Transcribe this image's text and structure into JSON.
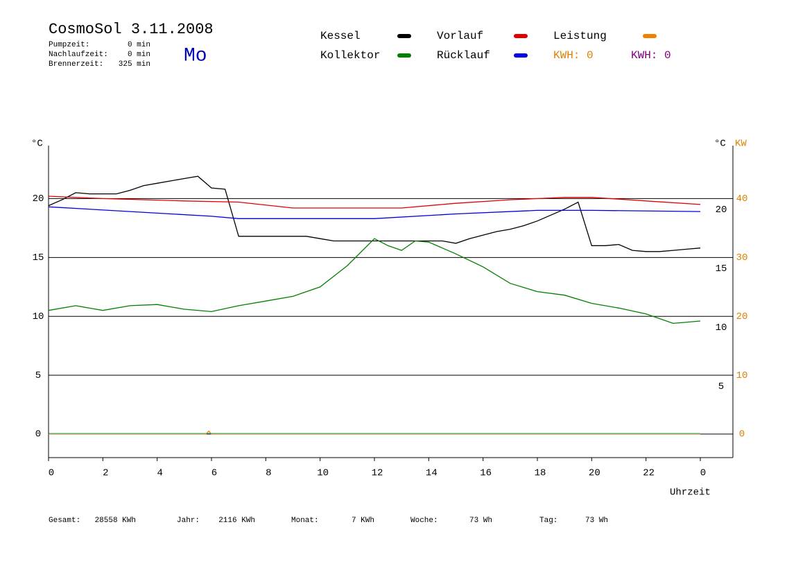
{
  "header": {
    "title": "CosmoSol 3.11.2008",
    "day": "Mo",
    "stats": [
      {
        "label": "Pumpzeit:",
        "value": "0 min"
      },
      {
        "label": "Nachlaufzeit:",
        "value": "0 min"
      },
      {
        "label": "Brennerzeit:",
        "value": "325 min"
      }
    ],
    "kwh": [
      {
        "label": "KWH: 0",
        "color": "#e08000"
      },
      {
        "label": "KWH: 0",
        "color": "#800080"
      }
    ]
  },
  "chart_data": {
    "type": "line",
    "xlabel": "Uhrzeit",
    "y_unit": "°C",
    "y_unit_right": "°C",
    "y2_unit": "KW",
    "grid": true,
    "xlim": [
      0,
      25.2
    ],
    "xticks": [
      0,
      2,
      4,
      6,
      8,
      10,
      12,
      14,
      16,
      18,
      20,
      22,
      {
        "value": 24,
        "label": "0"
      }
    ],
    "ylim": [
      -2,
      24.5
    ],
    "yticks": [
      0,
      5,
      10,
      15,
      20
    ],
    "yticks_right": [
      5,
      10,
      15,
      20
    ],
    "y2lim": [
      -4,
      49
    ],
    "y2ticks": [
      0,
      10,
      20,
      30,
      40
    ],
    "series": [
      {
        "name": "Kessel",
        "color": "#000000",
        "x": [
          0,
          0.5,
          1,
          1.5,
          2,
          2.5,
          3,
          3.5,
          4,
          4.5,
          5,
          5.5,
          6,
          6.5,
          7,
          7.5,
          8,
          8.5,
          9,
          9.5,
          10,
          10.5,
          11,
          11.5,
          12,
          12.5,
          13,
          13.5,
          14,
          14.5,
          15,
          15.5,
          16,
          16.5,
          17,
          17.5,
          18,
          18.5,
          19,
          19.5,
          20,
          20.5,
          21,
          21.5,
          22,
          22.5,
          23,
          23.5,
          24
        ],
        "values": [
          19.4,
          19.9,
          20.5,
          20.4,
          20.4,
          20.4,
          20.7,
          21.1,
          21.3,
          21.5,
          21.7,
          21.9,
          20.9,
          20.8,
          16.8,
          16.8,
          16.8,
          16.8,
          16.8,
          16.8,
          16.6,
          16.4,
          16.4,
          16.4,
          16.4,
          16.4,
          16.4,
          16.4,
          16.4,
          16.4,
          16.2,
          16.6,
          16.9,
          17.2,
          17.4,
          17.7,
          18.1,
          18.6,
          19.1,
          19.7,
          16,
          16,
          16.1,
          15.6,
          15.5,
          15.5,
          15.6,
          15.7,
          15.8
        ]
      },
      {
        "name": "Kollektor",
        "color": "#008000",
        "x": [
          0,
          1,
          2,
          3,
          4,
          5,
          6,
          7,
          8,
          9,
          10,
          11,
          12,
          12.5,
          13,
          13.5,
          14,
          15,
          16,
          17,
          18,
          19,
          20,
          21,
          22,
          23,
          24
        ],
        "values": [
          10.5,
          10.9,
          10.5,
          10.9,
          11,
          10.6,
          10.4,
          10.9,
          11.3,
          11.7,
          12.5,
          14.3,
          16.6,
          16.0,
          15.6,
          16.4,
          16.3,
          15.3,
          14.2,
          12.8,
          12.1,
          11.8,
          11.1,
          10.7,
          10.2,
          9.4,
          9.6
        ]
      },
      {
        "name": "Vorlauf",
        "color": "#e00000",
        "x": [
          0,
          2,
          5,
          7,
          9,
          13,
          15,
          17,
          19,
          20,
          22,
          24
        ],
        "values": [
          20.2,
          20,
          19.8,
          19.7,
          19.2,
          19.2,
          19.6,
          19.9,
          20.1,
          20.1,
          19.8,
          19.5
        ]
      },
      {
        "name": "Rücklauf",
        "color": "#0000e0",
        "x": [
          0,
          3,
          6,
          7,
          12,
          15,
          18,
          20,
          24
        ],
        "values": [
          19.3,
          18.9,
          18.5,
          18.3,
          18.3,
          18.7,
          19,
          19,
          18.9
        ]
      },
      {
        "name": "Leistung",
        "color": "#f08000",
        "axis": "y2",
        "x": [
          0,
          5.8,
          5.9,
          6,
          24
        ],
        "values": [
          0,
          0,
          0.5,
          0,
          0
        ]
      }
    ]
  },
  "footer": [
    {
      "label": "Gesamt:",
      "value": "28558 KWh"
    },
    {
      "label": "Jahr:",
      "value": "2116 KWh"
    },
    {
      "label": "Monat:",
      "value": "7 KWh"
    },
    {
      "label": "Woche:",
      "value": "73 Wh"
    },
    {
      "label": "Tag:",
      "value": "73 Wh"
    }
  ]
}
